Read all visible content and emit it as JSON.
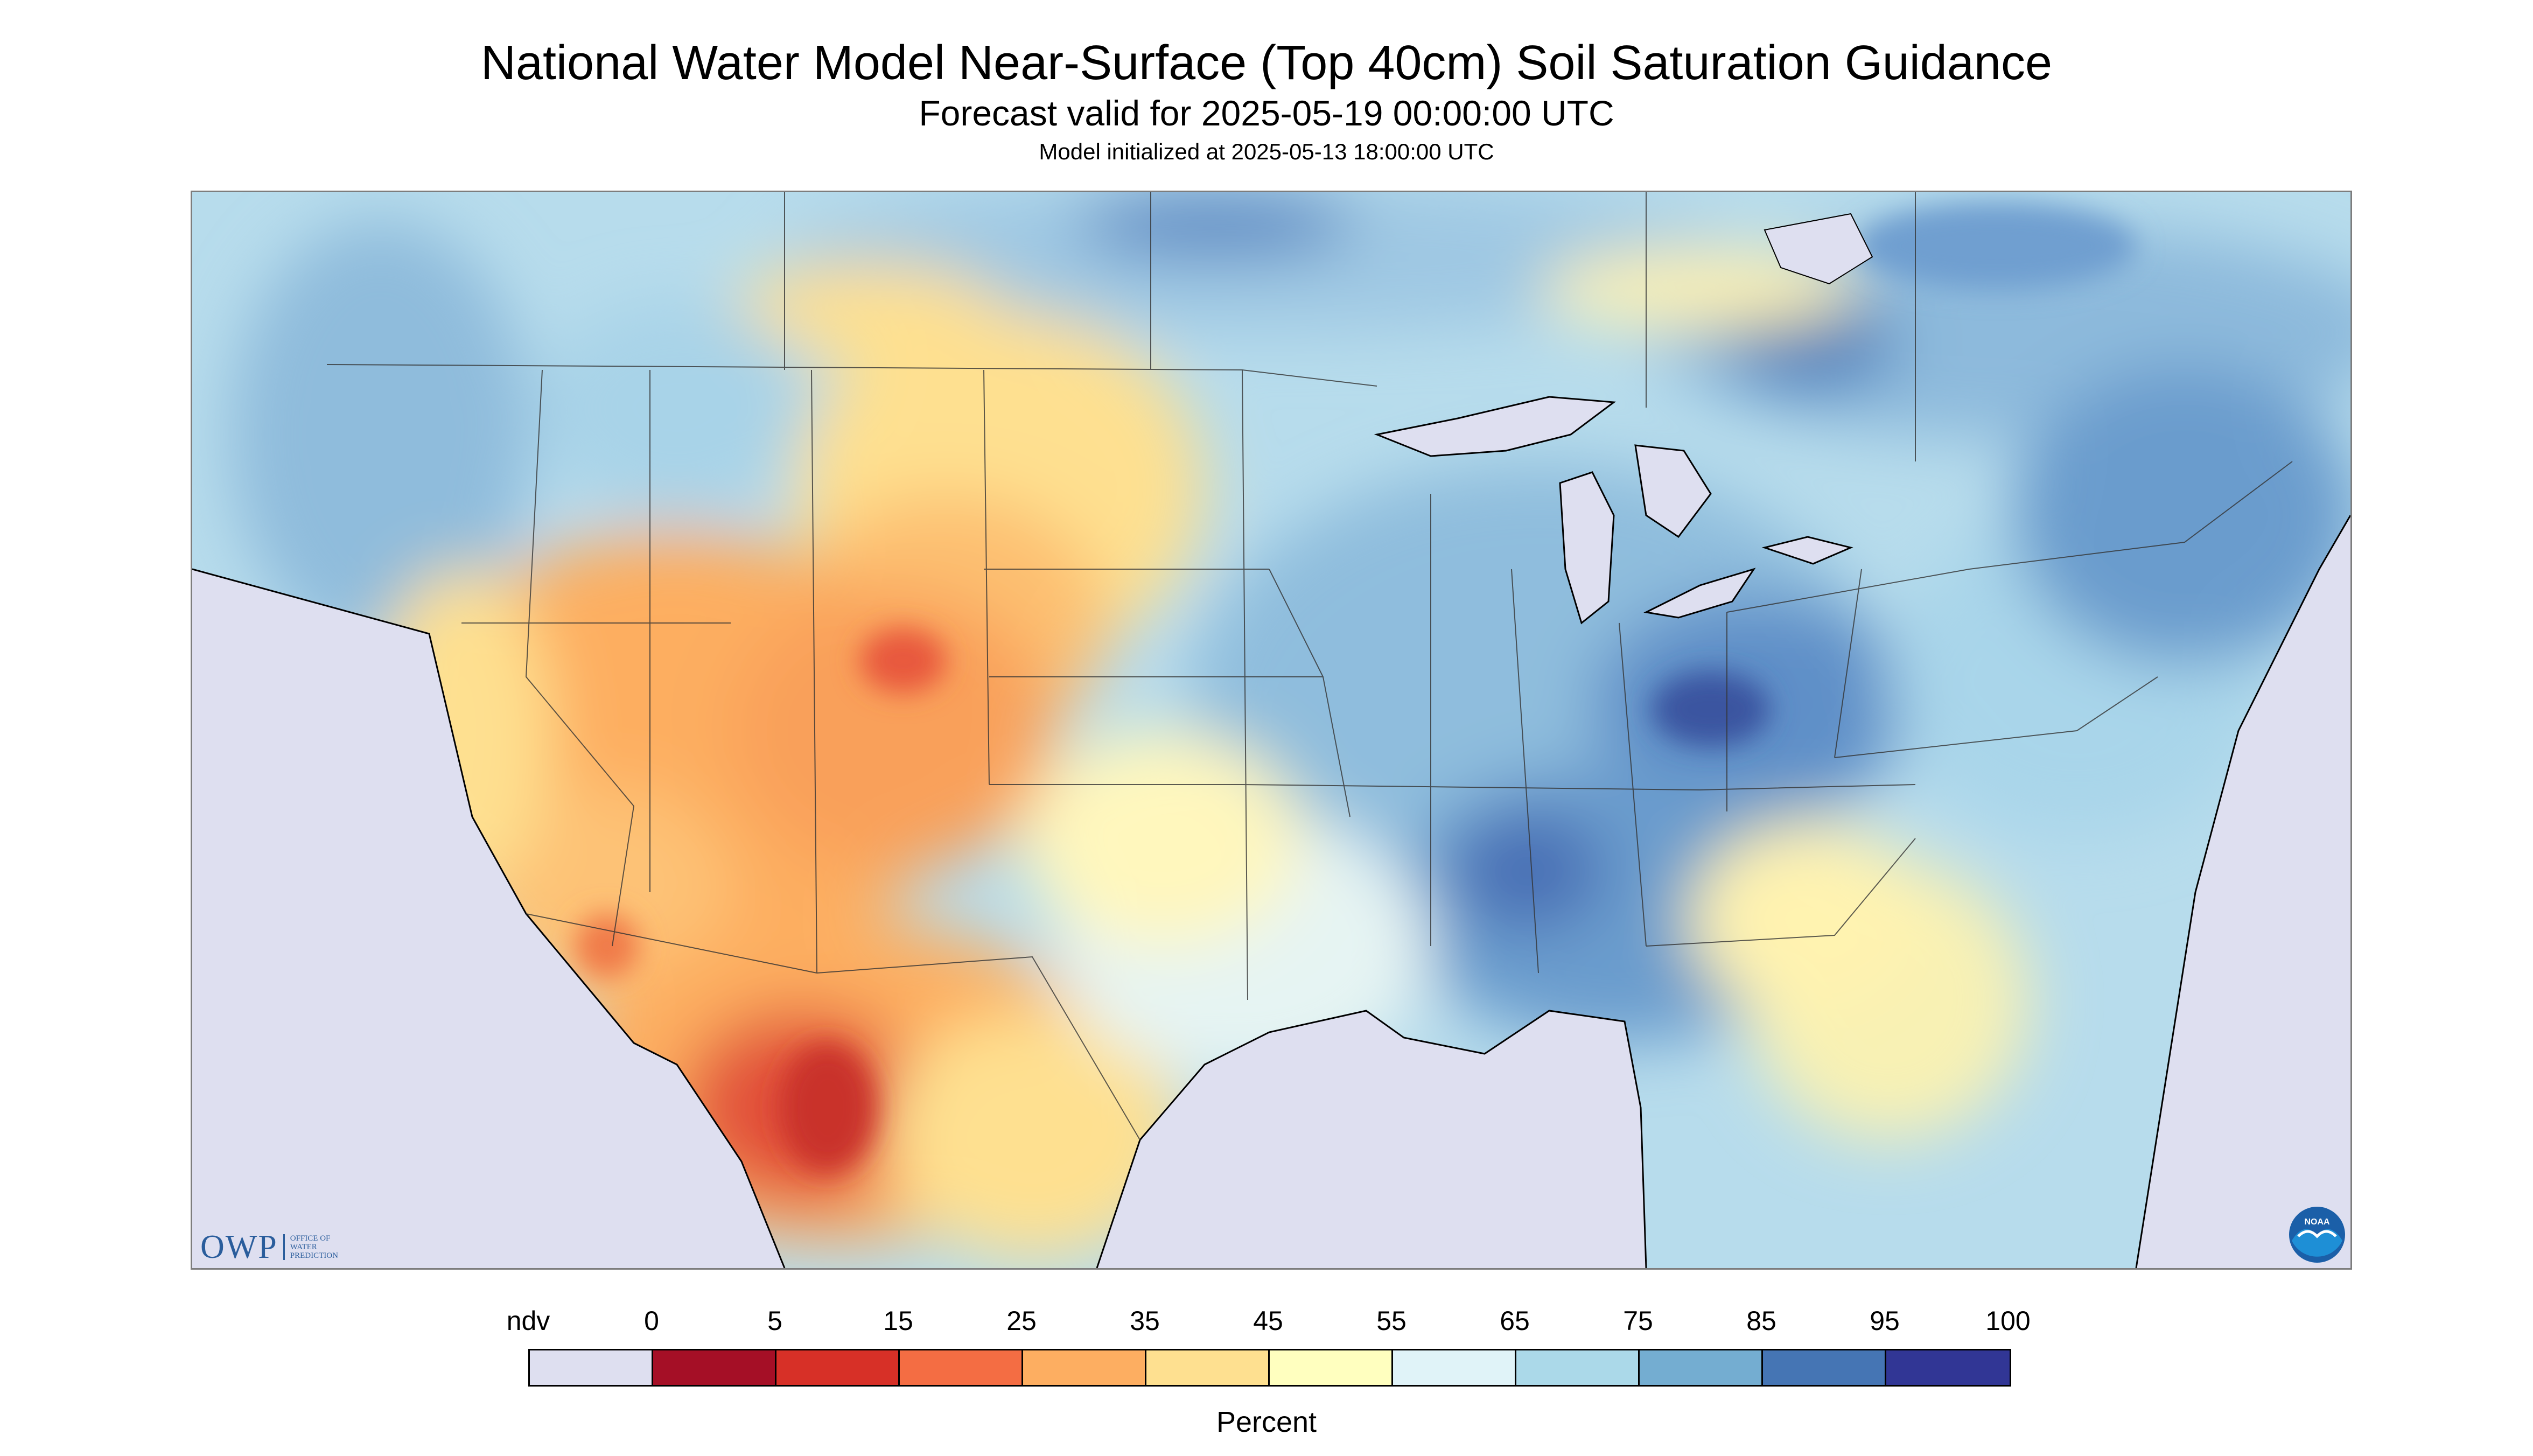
{
  "title": "National Water Model Near-Surface (Top 40cm) Soil Saturation Guidance",
  "subtitle": "Forecast valid for 2025-05-19 00:00:00 UTC",
  "init_line": "Model initialized at 2025-05-13 18:00:00 UTC",
  "logo": {
    "owp_text": "OWP",
    "owp_sub": [
      "Office of",
      "Water",
      "Prediction"
    ],
    "noaa_text": "NOAA",
    "noaa_icon": "noaa-seagull-logo"
  },
  "legend": {
    "label": "Percent",
    "tick_labels": [
      "ndv",
      "0",
      "5",
      "15",
      "25",
      "35",
      "45",
      "55",
      "65",
      "75",
      "85",
      "95",
      "100"
    ],
    "colors": [
      "#dedff0",
      "#a50f26",
      "#d73027",
      "#f46d43",
      "#fdae61",
      "#fee090",
      "#ffffbf",
      "#e0f3f8",
      "#abd9e9",
      "#74add1",
      "#4575b4",
      "#313695"
    ]
  },
  "map": {
    "region": "CONUS",
    "colors": {
      "no_data": "#dedff0",
      "wet": "#4575b4",
      "moist": "#abd9e9",
      "dry": "#fdae61",
      "very_dry": "#d73027"
    }
  }
}
